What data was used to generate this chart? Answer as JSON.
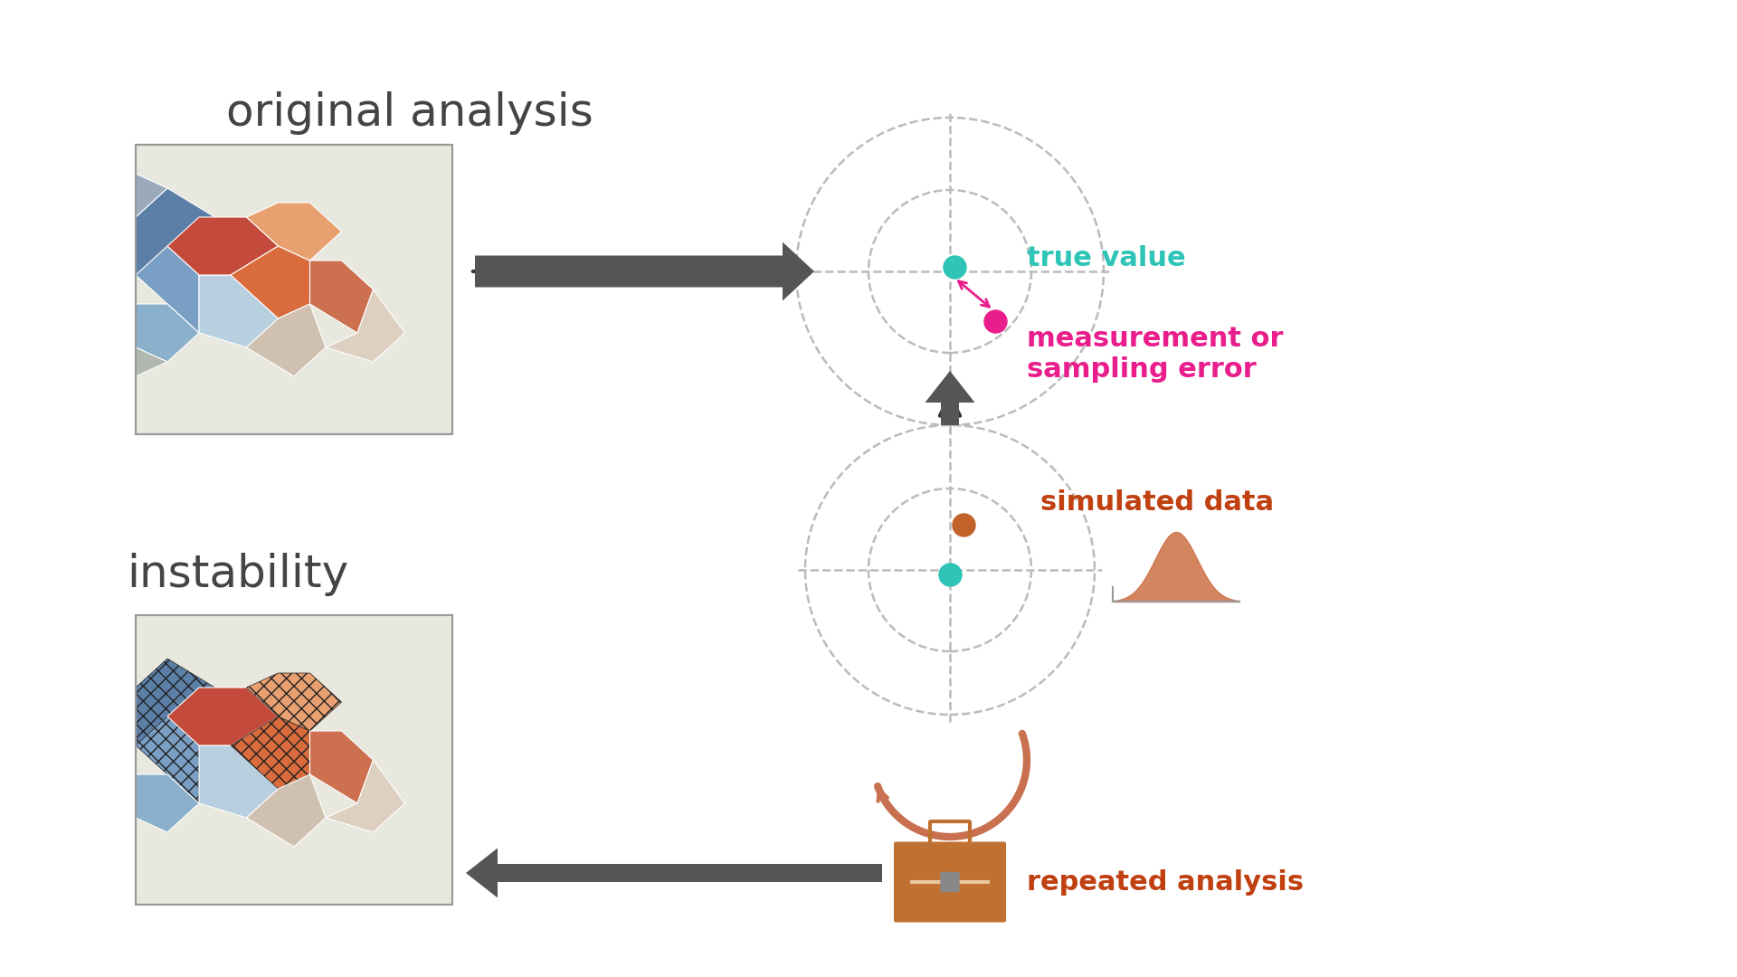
{
  "bg_color": "#ffffff",
  "title_fontsize": 36,
  "label_fontsize": 22,
  "orig_analysis_text": "original analysis",
  "instability_text": "instability",
  "true_value_text": "true value",
  "meas_error_text": "measurement or\nsampling error",
  "simulated_data_text": "simulated data",
  "repeated_analysis_text": "repeated analysis",
  "teal_color": "#2ec4b6",
  "magenta_color": "#e91e8c",
  "orange_brown_color": "#c0622a",
  "circle_color": "#cccccc",
  "text_dark": "#444444",
  "arrow_dark": "#555555",
  "cycle_arrow_color": "#c87050"
}
